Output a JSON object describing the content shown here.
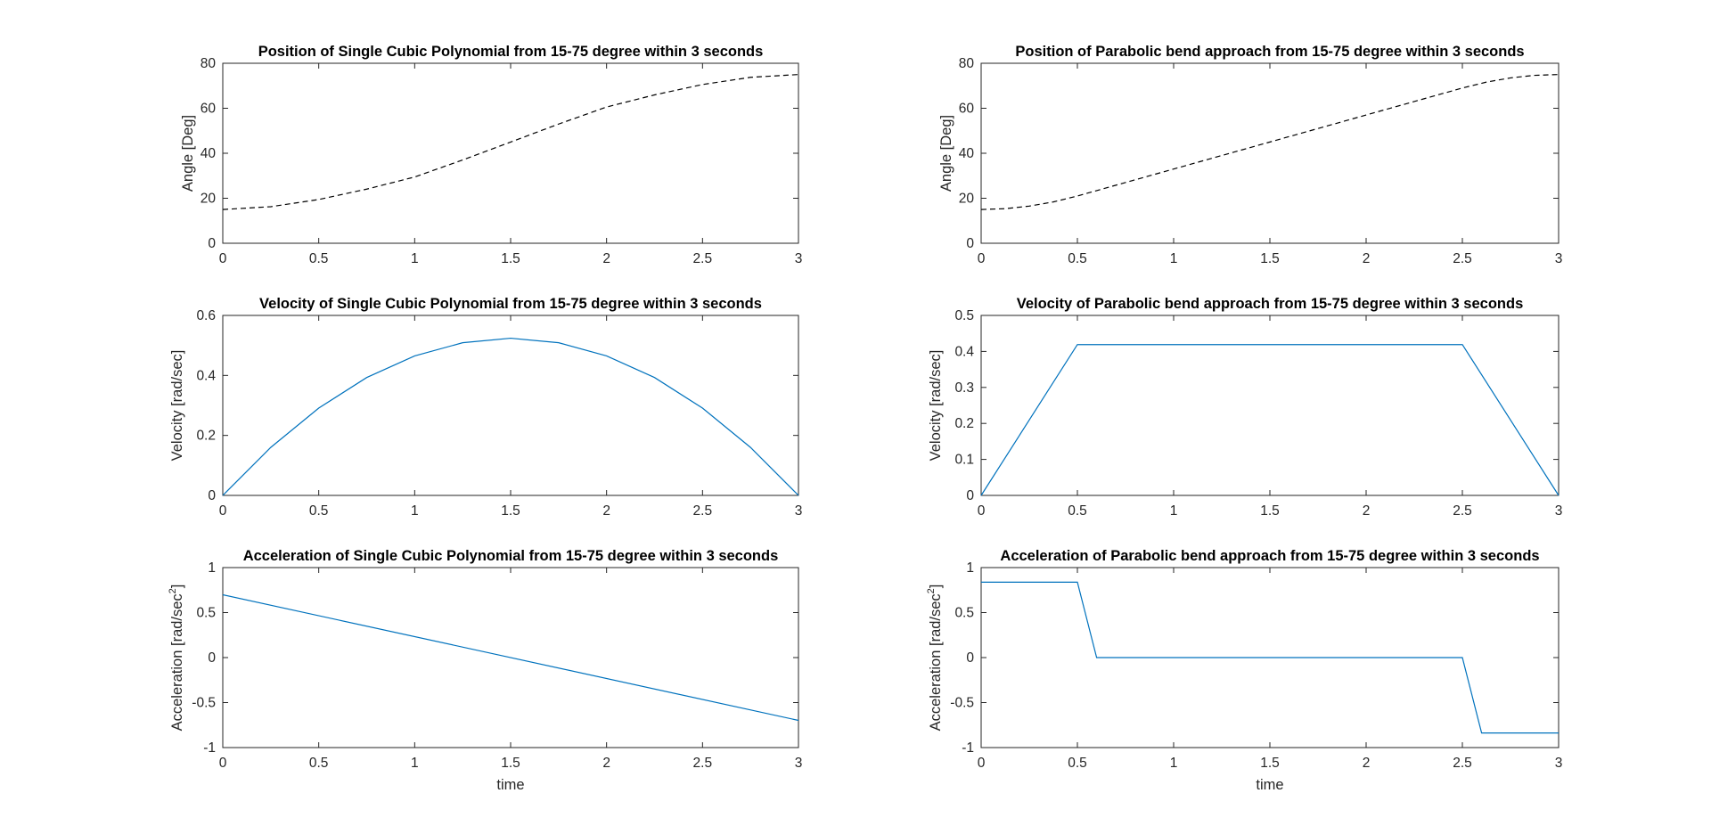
{
  "colors": {
    "line_blue": "#0072BD",
    "line_black": "#000000",
    "axes": "#262626",
    "background": "#ffffff"
  },
  "chart_data": [
    {
      "type": "line",
      "title": "Position of Single Cubic Polynomial from 15-75 degree within 3 seconds",
      "xlabel": "",
      "ylabel": "Angle [Deg]",
      "xlim": [
        0,
        3
      ],
      "ylim": [
        0,
        80
      ],
      "xticks": [
        "0",
        "0.5",
        "1",
        "1.5",
        "2",
        "2.5",
        "3"
      ],
      "yticks": [
        "0",
        "20",
        "40",
        "60",
        "80"
      ],
      "grid": false,
      "series": [
        {
          "color": "#000000",
          "style": "dashed",
          "x": [
            0,
            0.25,
            0.5,
            0.75,
            1,
            1.25,
            1.5,
            1.75,
            2,
            2.25,
            2.5,
            2.75,
            3
          ],
          "y": [
            15,
            16.25,
            19.44,
            24.06,
            29.44,
            37.03,
            45,
            52.97,
            60.56,
            65.94,
            70.56,
            73.75,
            75
          ]
        }
      ]
    },
    {
      "type": "line",
      "title": "Position of Parabolic bend approach from 15-75 degree within 3 seconds",
      "xlabel": "",
      "ylabel": "Angle [Deg]",
      "xlim": [
        0,
        3
      ],
      "ylim": [
        0,
        80
      ],
      "xticks": [
        "0",
        "0.5",
        "1",
        "1.5",
        "2",
        "2.5",
        "3"
      ],
      "yticks": [
        "0",
        "20",
        "40",
        "60",
        "80"
      ],
      "grid": false,
      "series": [
        {
          "color": "#000000",
          "style": "dashed",
          "x": [
            0,
            0.125,
            0.25,
            0.375,
            0.5,
            1,
            1.5,
            2,
            2.5,
            2.625,
            2.75,
            2.875,
            3
          ],
          "y": [
            15,
            15.37,
            16.5,
            18.37,
            21,
            33,
            45,
            57,
            69,
            71.63,
            73.5,
            74.63,
            75
          ]
        }
      ]
    },
    {
      "type": "line",
      "title": "Velocity of Single Cubic Polynomial from 15-75 degree within 3 seconds",
      "xlabel": "",
      "ylabel": "Velocity [rad/sec]",
      "xlim": [
        0,
        3
      ],
      "ylim": [
        0,
        0.6
      ],
      "xticks": [
        "0",
        "0.5",
        "1",
        "1.5",
        "2",
        "2.5",
        "3"
      ],
      "yticks": [
        "0",
        "0.2",
        "0.4",
        "0.6"
      ],
      "grid": false,
      "series": [
        {
          "color": "#0072BD",
          "style": "solid",
          "x": [
            0,
            0.25,
            0.5,
            0.75,
            1,
            1.25,
            1.5,
            1.75,
            2,
            2.25,
            2.5,
            2.75,
            3
          ],
          "y": [
            0,
            0.16,
            0.291,
            0.393,
            0.465,
            0.509,
            0.524,
            0.509,
            0.465,
            0.393,
            0.291,
            0.16,
            0
          ]
        }
      ]
    },
    {
      "type": "line",
      "title": "Velocity of Parabolic bend approach from 15-75 degree within 3 seconds",
      "xlabel": "",
      "ylabel": "Velocity [rad/sec]",
      "xlim": [
        0,
        3
      ],
      "ylim": [
        0,
        0.5
      ],
      "xticks": [
        "0",
        "0.5",
        "1",
        "1.5",
        "2",
        "2.5",
        "3"
      ],
      "yticks": [
        "0",
        "0.1",
        "0.2",
        "0.3",
        "0.4",
        "0.5"
      ],
      "grid": false,
      "series": [
        {
          "color": "#0072BD",
          "style": "solid",
          "x": [
            0,
            0.5,
            2.5,
            3
          ],
          "y": [
            0,
            0.419,
            0.419,
            0
          ]
        }
      ]
    },
    {
      "type": "line",
      "title": "Acceleration of Single Cubic Polynomial from 15-75 degree within 3 seconds",
      "xlabel": "time",
      "ylabel": "Acceleration [rad/sec",
      "ylabel_sup": "2",
      "ylabel_end": "]",
      "xlim": [
        0,
        3
      ],
      "ylim": [
        -1,
        1
      ],
      "xticks": [
        "0",
        "0.5",
        "1",
        "1.5",
        "2",
        "2.5",
        "3"
      ],
      "yticks": [
        "-1",
        "-0.5",
        "0",
        "0.5",
        "1"
      ],
      "grid": false,
      "series": [
        {
          "color": "#0072BD",
          "style": "solid",
          "x": [
            0,
            3
          ],
          "y": [
            0.698,
            -0.698
          ]
        }
      ]
    },
    {
      "type": "line",
      "title": "Acceleration of Parabolic bend approach from 15-75 degree within 3 seconds",
      "xlabel": "time",
      "ylabel": "Acceleration [rad/sec",
      "ylabel_sup": "2",
      "ylabel_end": "]",
      "xlim": [
        0,
        3
      ],
      "ylim": [
        -1,
        1
      ],
      "xticks": [
        "0",
        "0.5",
        "1",
        "1.5",
        "2",
        "2.5",
        "3"
      ],
      "yticks": [
        "-1",
        "-0.5",
        "0",
        "0.5",
        "1"
      ],
      "grid": false,
      "series": [
        {
          "color": "#0072BD",
          "style": "solid",
          "x": [
            0,
            0.5,
            0.6,
            2.5,
            2.6,
            3
          ],
          "y": [
            0.838,
            0.838,
            0,
            0,
            -0.838,
            -0.838
          ]
        }
      ]
    }
  ]
}
